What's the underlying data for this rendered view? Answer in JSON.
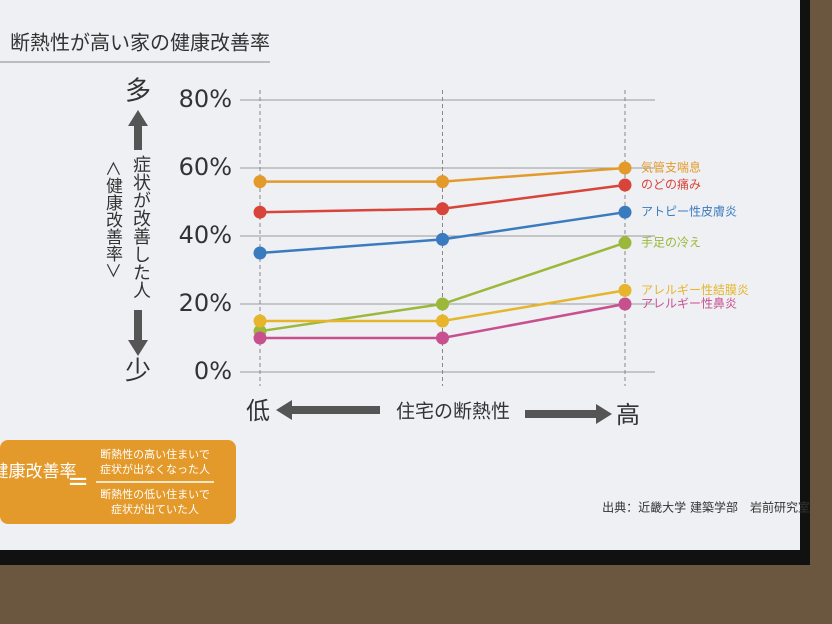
{
  "chart_data": {
    "type": "line",
    "title": "断熱性が高い家の健康改善率",
    "categories": [
      null,
      null,
      null
    ],
    "series": [
      {
        "name": "気管支喘息",
        "color": "#e39a2a",
        "values": [
          56,
          56,
          60
        ]
      },
      {
        "name": "のどの痛み",
        "color": "#d9443a",
        "values": [
          47,
          48,
          55
        ]
      },
      {
        "name": "アトピー性皮膚炎",
        "color": "#3a7bbf",
        "values": [
          35,
          39,
          47
        ]
      },
      {
        "name": "手足の冷え",
        "color": "#9bb83a",
        "values": [
          12,
          20,
          38
        ]
      },
      {
        "name": "アレルギー性結膜炎",
        "color": "#e6b52c",
        "values": [
          15,
          15,
          24
        ]
      },
      {
        "name": "アレルギー性鼻炎",
        "color": "#c8508f",
        "values": [
          10,
          10,
          20
        ]
      }
    ],
    "ylim": [
      0,
      80
    ],
    "yticks": [
      {
        "value": 0,
        "label": "0%"
      },
      {
        "value": 20,
        "label": "20%"
      },
      {
        "value": 40,
        "label": "40%"
      },
      {
        "value": 60,
        "label": "60%"
      },
      {
        "value": 80,
        "label": "80%"
      }
    ],
    "grid": true,
    "x_label": "住宅の断熱性",
    "x_low": "低",
    "x_high": "高",
    "y_high": "多",
    "y_low": "少",
    "y_label": "症状が改善した人",
    "y_sublabel": "＜健康改善率＞"
  },
  "formula": {
    "term": "健康改善率",
    "equals": "=",
    "numerator": [
      "断熱性の高い住まいで",
      "症状が出なくなった人"
    ],
    "denominator": [
      "断熱性の低い住まいで",
      "症状が出ていた人"
    ]
  },
  "source": "出典：近畿大学 建築学部　岩前研究室"
}
